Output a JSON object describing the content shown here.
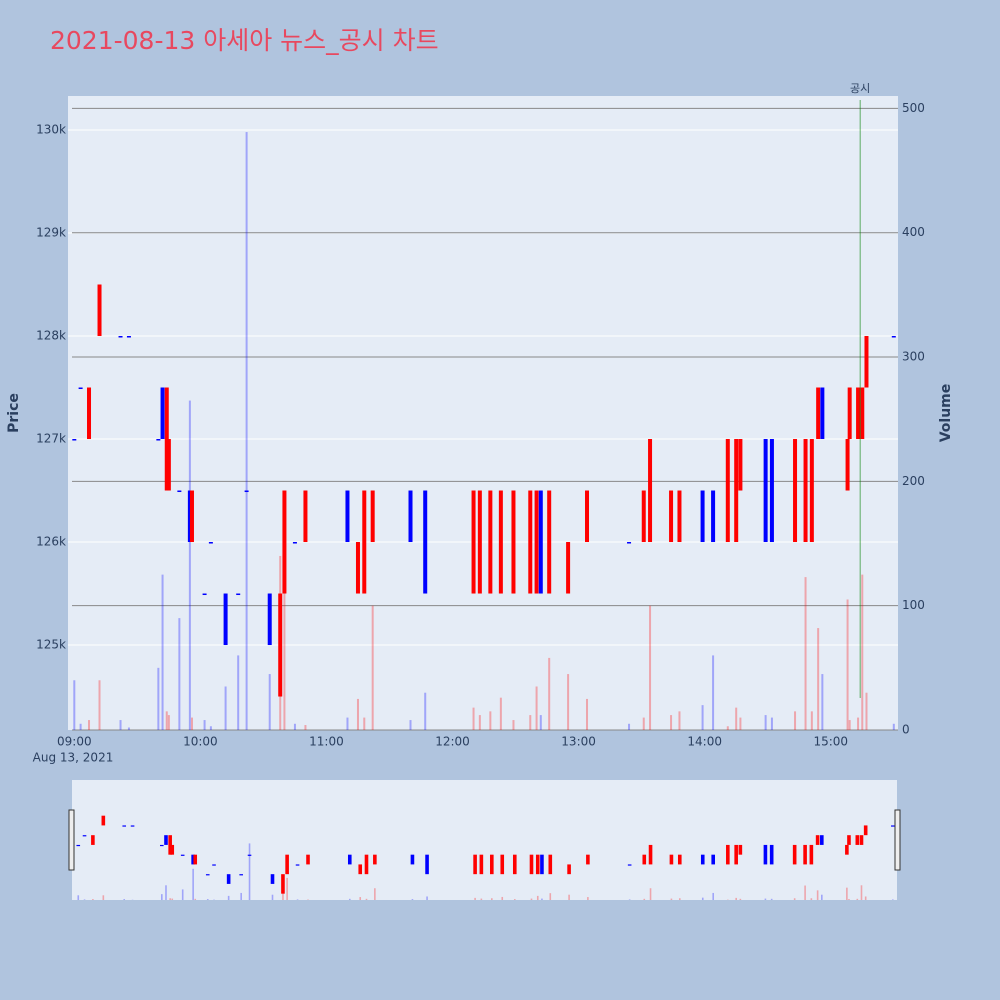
{
  "chart_data": {
    "type": "candlestick",
    "title": "2021-08-13 아세아 뉴스_공시 차트",
    "xlabel_date": "Aug 13, 2021",
    "ylabel": "Price",
    "y2label": "Volume",
    "increasing_color": "#ff0000",
    "decreasing_color": "#0000ff",
    "xlim": [
      "08:57",
      "15:32"
    ],
    "xticks": [
      "09:00",
      "10:00",
      "11:00",
      "12:00",
      "13:00",
      "14:00",
      "15:00"
    ],
    "ylim": [
      124175,
      130330
    ],
    "yticks": [
      {
        "value": 125000,
        "label": "125k"
      },
      {
        "value": 126000,
        "label": "126k"
      },
      {
        "value": 127000,
        "label": "127k"
      },
      {
        "value": 128000,
        "label": "128k"
      },
      {
        "value": 129000,
        "label": "129k"
      },
      {
        "value": 130000,
        "label": "130k"
      }
    ],
    "y2lim": [
      0,
      510
    ],
    "y2ticks": [
      0,
      100,
      200,
      300,
      400,
      500
    ],
    "annotation": {
      "x": "15:14",
      "text": "공시"
    },
    "x": [
      "09:00",
      "09:03",
      "09:07",
      "09:12",
      "09:22",
      "09:26",
      "09:40",
      "09:42",
      "09:44",
      "09:45",
      "09:50",
      "09:55",
      "09:56",
      "10:02",
      "10:05",
      "10:12",
      "10:18",
      "10:22",
      "10:33",
      "10:38",
      "10:40",
      "10:45",
      "10:50",
      "11:10",
      "11:15",
      "11:18",
      "11:22",
      "11:40",
      "11:47",
      "12:10",
      "12:13",
      "12:18",
      "12:23",
      "12:29",
      "12:37",
      "12:40",
      "12:42",
      "12:46",
      "12:55",
      "13:04",
      "13:24",
      "13:31",
      "13:34",
      "13:44",
      "13:48",
      "13:59",
      "14:04",
      "14:11",
      "14:15",
      "14:17",
      "14:29",
      "14:32",
      "14:43",
      "14:48",
      "14:51",
      "14:54",
      "14:56",
      "15:08",
      "15:09",
      "15:13",
      "15:15",
      "15:17",
      "15:30"
    ],
    "open": [
      127000,
      127500,
      127000,
      128000,
      128000,
      128000,
      127000,
      127500,
      126500,
      126500,
      126500,
      126500,
      126000,
      125500,
      126000,
      125500,
      125500,
      126500,
      125500,
      124500,
      125500,
      126000,
      126000,
      126500,
      125500,
      125500,
      126000,
      126500,
      126500,
      125500,
      125500,
      125500,
      125500,
      125500,
      125500,
      125500,
      126500,
      125500,
      125500,
      126000,
      126000,
      126000,
      126000,
      126000,
      126000,
      126500,
      126500,
      126000,
      126000,
      126500,
      127000,
      127000,
      126000,
      126000,
      126000,
      127000,
      127500,
      126500,
      127000,
      127000,
      127000,
      127500,
      128000
    ],
    "high": [
      127000,
      127500,
      127500,
      128500,
      128000,
      128000,
      127000,
      127500,
      127500,
      127000,
      126500,
      126500,
      126500,
      125500,
      126000,
      125500,
      125500,
      126500,
      125500,
      125500,
      126500,
      126000,
      126500,
      126500,
      126000,
      126500,
      126500,
      126500,
      126500,
      126500,
      126500,
      126500,
      126500,
      126500,
      126500,
      126500,
      126500,
      126500,
      126000,
      126500,
      126000,
      126500,
      127000,
      126500,
      126500,
      126500,
      126500,
      127000,
      127000,
      127000,
      127000,
      127000,
      127000,
      127000,
      127000,
      127500,
      127500,
      127000,
      127500,
      127500,
      127500,
      128000,
      128000
    ],
    "low": [
      127000,
      127500,
      127000,
      128000,
      128000,
      128000,
      127000,
      127000,
      126500,
      126500,
      126500,
      126000,
      126000,
      125500,
      126000,
      125000,
      125500,
      126500,
      125000,
      124500,
      125500,
      126000,
      126000,
      126000,
      125500,
      125500,
      126000,
      126000,
      125500,
      125500,
      125500,
      125500,
      125500,
      125500,
      125500,
      125500,
      125500,
      125500,
      125500,
      126000,
      126000,
      126000,
      126000,
      126000,
      126000,
      126000,
      126000,
      126000,
      126000,
      126500,
      126000,
      126000,
      126000,
      126000,
      126000,
      127000,
      127000,
      126500,
      127000,
      127000,
      127000,
      127500,
      128000
    ],
    "close": [
      127000,
      127500,
      127500,
      128500,
      128000,
      128000,
      127000,
      127000,
      127500,
      127000,
      126500,
      126000,
      126500,
      125500,
      126000,
      125000,
      125500,
      126500,
      125000,
      125500,
      126500,
      126000,
      126500,
      126000,
      126000,
      126500,
      126500,
      126000,
      125500,
      126500,
      126500,
      126500,
      126500,
      126500,
      126500,
      126500,
      125500,
      126500,
      126000,
      126500,
      126000,
      126500,
      127000,
      126500,
      126500,
      126000,
      126000,
      127000,
      127000,
      127000,
      126000,
      126000,
      127000,
      127000,
      127000,
      127500,
      127000,
      127000,
      127500,
      127500,
      127500,
      128000,
      128000
    ],
    "volume": [
      40,
      5,
      8,
      40,
      8,
      2,
      50,
      125,
      15,
      12,
      90,
      265,
      10,
      8,
      3,
      35,
      60,
      481,
      45,
      140,
      188,
      5,
      4,
      10,
      25,
      10,
      100,
      8,
      30,
      18,
      12,
      15,
      26,
      8,
      12,
      35,
      12,
      58,
      45,
      25,
      5,
      10,
      100,
      12,
      15,
      20,
      60,
      3,
      18,
      10,
      12,
      10,
      15,
      123,
      15,
      82,
      45,
      105,
      8,
      10,
      125,
      30,
      5
    ]
  }
}
